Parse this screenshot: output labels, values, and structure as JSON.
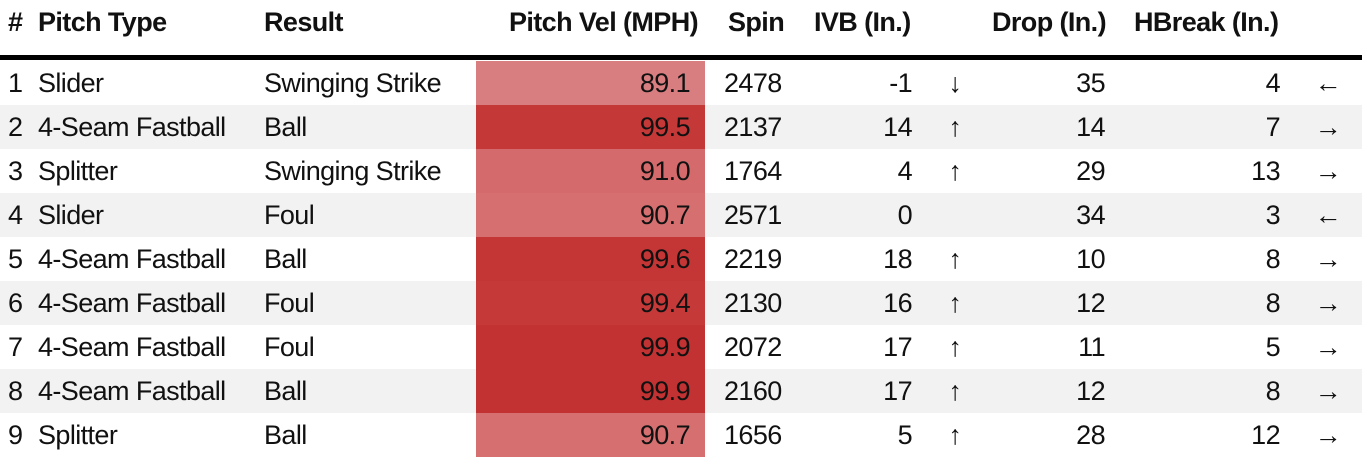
{
  "table": {
    "headers": [
      "#",
      "Pitch Type",
      "Result",
      "Pitch Vel (MPH)",
      "Spin",
      "IVB (In.)",
      "Drop (In.)",
      "HBreak (In.)"
    ],
    "rows": [
      [
        "1",
        "Slider",
        "Swinging Strike",
        "89.1",
        "2478",
        "-1",
        "↓",
        "35",
        "4",
        "←"
      ],
      [
        "2",
        "4-Seam Fastball",
        "Ball",
        "99.5",
        "2137",
        "14",
        "↑",
        "14",
        "7",
        "→"
      ],
      [
        "3",
        "Splitter",
        "Swinging Strike",
        "91.0",
        "1764",
        "4",
        "↑",
        "29",
        "13",
        "→"
      ],
      [
        "4",
        "Slider",
        "Foul",
        "90.7",
        "2571",
        "0",
        null,
        "34",
        "3",
        "←"
      ],
      [
        "5",
        "4-Seam Fastball",
        "Ball",
        "99.6",
        "2219",
        "18",
        "↑",
        "10",
        "8",
        "→"
      ],
      [
        "6",
        "4-Seam Fastball",
        "Foul",
        "99.4",
        "2130",
        "16",
        "↑",
        "12",
        "8",
        "→"
      ],
      [
        "7",
        "4-Seam Fastball",
        "Foul",
        "99.9",
        "2072",
        "17",
        "↑",
        "11",
        "5",
        "→"
      ],
      [
        "8",
        "4-Seam Fastball",
        "Ball",
        "99.9",
        "2160",
        "17",
        "↑",
        "12",
        "8",
        "→"
      ],
      [
        "9",
        "Splitter",
        "Ball",
        "90.7",
        "1656",
        "5",
        "↑",
        "28",
        "12",
        "→"
      ]
    ],
    "vel_colors": [
      "#d97e80",
      "#c53838",
      "#d46a6b",
      "#d56f70",
      "#c43535",
      "#c53939",
      "#c23232",
      "#c23232",
      "#d56f70"
    ]
  }
}
